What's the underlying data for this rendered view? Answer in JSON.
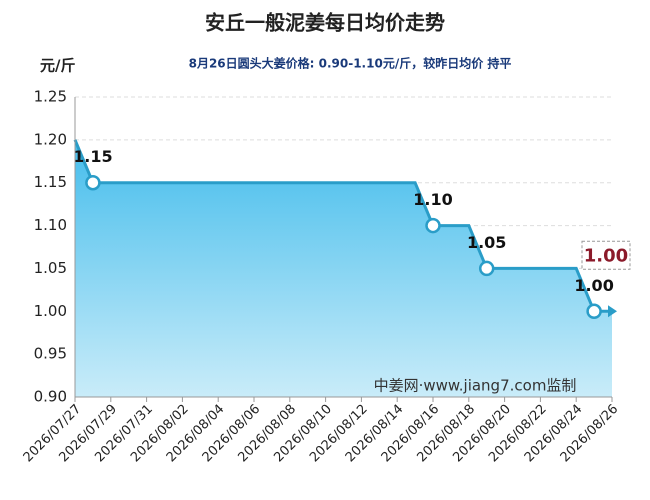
{
  "chart_data": {
    "type": "step-area",
    "title": "安丘一般泥姜每日均价走势",
    "subtitle": "8月26日圆头大姜价格: 0.90-1.10元/斤，较昨日均价 持平",
    "y_unit": "元/斤",
    "watermark": "中姜网·www.jiang7.com监制",
    "categories": [
      "2026/07/27",
      null,
      "2026/07/29",
      null,
      "2026/07/31",
      null,
      "2026/08/02",
      null,
      "2026/08/04",
      null,
      "2026/08/06",
      null,
      "2026/08/08",
      null,
      "2026/08/10",
      null,
      "2026/08/12",
      null,
      "2026/08/14",
      null,
      "2026/08/16",
      null,
      "2026/08/18",
      null,
      "2026/08/20",
      null,
      "2026/08/22",
      null,
      "2026/08/24",
      null,
      "2026/08/26"
    ],
    "values": [
      1.2,
      1.15,
      1.15,
      1.15,
      1.15,
      1.15,
      1.15,
      1.15,
      1.15,
      1.15,
      1.15,
      1.15,
      1.15,
      1.15,
      1.15,
      1.15,
      1.15,
      1.15,
      1.15,
      1.15,
      1.1,
      1.1,
      1.1,
      1.05,
      1.05,
      1.05,
      1.05,
      1.05,
      1.05,
      1.0,
      1.0
    ],
    "value_labels": [
      null,
      "1.15",
      null,
      null,
      null,
      null,
      null,
      null,
      null,
      null,
      null,
      null,
      null,
      null,
      null,
      null,
      null,
      null,
      null,
      null,
      "1.10",
      null,
      null,
      "1.05",
      null,
      null,
      null,
      null,
      null,
      "1.00",
      null
    ],
    "latest_label": "1.00",
    "color": "#2a9dc8",
    "ylim": [
      0.9,
      1.25
    ],
    "yticks": [
      {
        "value": 0.9,
        "label": "0.90"
      },
      {
        "value": 0.95,
        "label": "0.95"
      },
      {
        "value": 1.0,
        "label": "1.00"
      },
      {
        "value": 1.05,
        "label": "1.05"
      },
      {
        "value": 1.1,
        "label": "1.10"
      },
      {
        "value": 1.15,
        "label": "1.15"
      },
      {
        "value": 1.2,
        "label": "1.20"
      },
      {
        "value": 1.25,
        "label": "1.25"
      }
    ],
    "grid": true
  }
}
